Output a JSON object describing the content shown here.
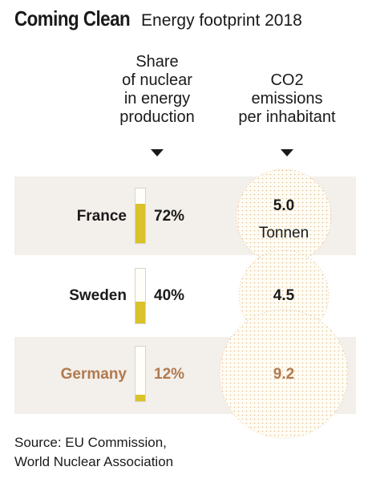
{
  "title": "Coming Clean",
  "subtitle": "Energy footprint 2018",
  "headers": {
    "share": [
      "Share",
      "of nuclear",
      "in energy",
      "production"
    ],
    "co2": [
      "CO2",
      "emissions",
      "per inhabitant"
    ]
  },
  "co2_unit": "Tonnen",
  "source": [
    "Source: EU Commission,",
    "World Nuclear Association"
  ],
  "colors": {
    "bar": "#d9c22a",
    "highlight_text": "#b07a4f",
    "band": "#f3efea",
    "bubble_dots": "#e2b98a"
  },
  "chart_data": {
    "type": "table",
    "rows": [
      {
        "country": "France",
        "nuclear_share": 72,
        "nuclear_share_label": "72%",
        "co2": 5.0,
        "co2_label": "5.0",
        "highlight": false
      },
      {
        "country": "Sweden",
        "nuclear_share": 40,
        "nuclear_share_label": "40%",
        "co2": 4.5,
        "co2_label": "4.5",
        "highlight": false
      },
      {
        "country": "Germany",
        "nuclear_share": 12,
        "nuclear_share_label": "12%",
        "co2": 9.2,
        "co2_label": "9.2",
        "highlight": true
      }
    ]
  }
}
